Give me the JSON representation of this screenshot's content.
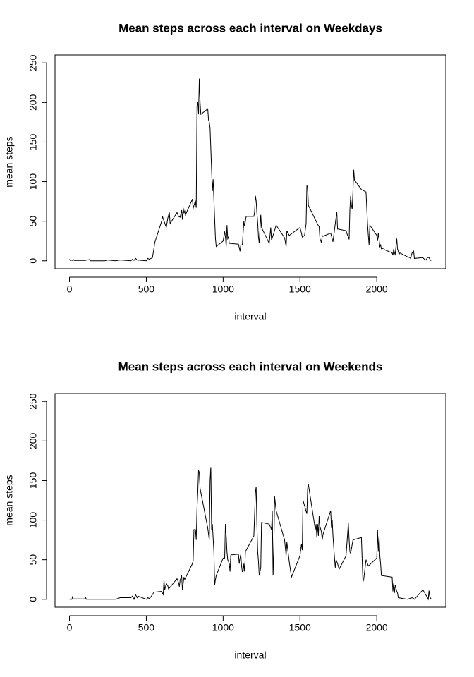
{
  "chart_data": [
    {
      "type": "line",
      "title": "Mean steps across each interval on Weekdays",
      "x_label": "interval",
      "y_label": "mean steps",
      "color": "#000000",
      "xlim": [
        -94.2,
        2449.2
      ],
      "ylim": [
        -10,
        260
      ],
      "xticks": [
        0,
        500,
        1000,
        1500,
        2000
      ],
      "yticks": [
        0,
        50,
        100,
        150,
        200,
        250
      ],
      "x": [
        0,
        5,
        10,
        15,
        20,
        25,
        30,
        100,
        130,
        135,
        200,
        230,
        245,
        300,
        330,
        400,
        410,
        420,
        430,
        440,
        500,
        510,
        520,
        530,
        540,
        550,
        555,
        600,
        605,
        630,
        640,
        650,
        655,
        700,
        710,
        720,
        730,
        735,
        740,
        745,
        750,
        755,
        800,
        805,
        810,
        815,
        820,
        825,
        830,
        835,
        840,
        845,
        850,
        855,
        900,
        905,
        910,
        915,
        930,
        935,
        945,
        950,
        955,
        1000,
        1010,
        1015,
        1020,
        1025,
        1030,
        1035,
        1040,
        1100,
        1110,
        1115,
        1125,
        1135,
        1140,
        1150,
        1200,
        1205,
        1210,
        1215,
        1220,
        1225,
        1230,
        1235,
        1245,
        1250,
        1300,
        1310,
        1315,
        1330,
        1345,
        1400,
        1410,
        1415,
        1430,
        1500,
        1510,
        1515,
        1530,
        1540,
        1545,
        1550,
        1555,
        1615,
        1625,
        1630,
        1640,
        1645,
        1650,
        1700,
        1715,
        1730,
        1740,
        1745,
        1750,
        1800,
        1810,
        1815,
        1820,
        1825,
        1830,
        1835,
        1840,
        1845,
        1850,
        1855,
        1900,
        1930,
        1940,
        1945,
        1950,
        1955,
        2000,
        2005,
        2010,
        2015,
        2020,
        2025,
        2030,
        2045,
        2050,
        2100,
        2105,
        2110,
        2115,
        2120,
        2130,
        2135,
        2140,
        2145,
        2150,
        2200,
        2215,
        2220,
        2230,
        2235,
        2240,
        2245,
        2300,
        2310,
        2320,
        2330,
        2340,
        2350,
        2355
      ],
      "values": [
        2,
        0.5,
        0.5,
        1,
        0.5,
        1.5,
        0.5,
        0.5,
        1.5,
        0,
        0,
        0,
        1,
        0,
        1,
        0,
        2,
        0.5,
        3,
        1,
        0,
        3,
        2,
        3,
        4,
        16,
        23,
        50,
        56,
        42,
        54,
        61,
        47,
        61,
        56,
        55,
        64,
        52,
        67,
        60,
        63,
        58,
        78,
        66,
        70,
        73,
        75,
        67,
        195,
        201,
        185,
        230,
        200,
        185,
        192,
        178,
        175,
        168,
        88,
        103,
        52,
        28,
        18,
        25,
        37,
        30,
        18,
        45,
        28,
        30,
        22,
        21,
        12,
        20,
        20,
        50,
        44,
        56,
        56,
        62,
        82,
        76,
        60,
        48,
        30,
        22,
        58,
        42,
        22,
        42,
        26,
        35,
        45,
        29,
        18,
        38,
        32,
        42,
        35,
        30,
        32,
        47,
        95,
        93,
        70,
        46,
        43,
        28,
        23,
        32,
        31,
        35,
        24,
        47,
        62,
        40,
        40,
        38,
        32,
        30,
        27,
        65,
        82,
        70,
        65,
        88,
        115,
        102,
        90,
        87,
        46,
        32,
        20,
        45,
        32,
        25,
        35,
        27,
        18,
        20,
        15,
        16,
        14,
        10,
        7,
        15,
        10,
        8,
        28,
        15,
        12,
        8,
        10,
        5,
        4,
        3,
        10,
        10,
        12,
        3,
        4,
        2,
        1,
        4,
        4,
        0.5,
        1
      ]
    },
    {
      "type": "line",
      "title": "Mean steps across each interval on Weekends",
      "x_label": "interval",
      "y_label": "mean steps",
      "color": "#000000",
      "xlim": [
        -94.2,
        2449.2
      ],
      "ylim": [
        -10,
        260
      ],
      "xticks": [
        0,
        500,
        1000,
        1500,
        2000
      ],
      "yticks": [
        0,
        50,
        100,
        150,
        200,
        250
      ],
      "x": [
        0,
        15,
        20,
        25,
        100,
        105,
        110,
        200,
        300,
        330,
        400,
        410,
        420,
        430,
        440,
        445,
        500,
        510,
        520,
        530,
        540,
        550,
        600,
        610,
        615,
        620,
        630,
        640,
        645,
        700,
        710,
        715,
        720,
        730,
        735,
        745,
        750,
        800,
        805,
        810,
        820,
        825,
        830,
        835,
        840,
        845,
        850,
        855,
        900,
        910,
        915,
        920,
        925,
        930,
        940,
        945,
        950,
        955,
        1000,
        1010,
        1015,
        1020,
        1025,
        1030,
        1040,
        1045,
        1050,
        1100,
        1105,
        1110,
        1115,
        1120,
        1125,
        1130,
        1135,
        1140,
        1145,
        1200,
        1210,
        1215,
        1220,
        1225,
        1230,
        1235,
        1245,
        1250,
        1300,
        1315,
        1320,
        1325,
        1330,
        1335,
        1345,
        1400,
        1410,
        1415,
        1430,
        1445,
        1500,
        1510,
        1515,
        1520,
        1545,
        1550,
        1555,
        1600,
        1605,
        1610,
        1615,
        1620,
        1625,
        1630,
        1640,
        1645,
        1650,
        1700,
        1705,
        1710,
        1715,
        1725,
        1730,
        1735,
        1745,
        1755,
        1800,
        1815,
        1820,
        1825,
        1830,
        1845,
        1900,
        1910,
        1915,
        1930,
        1945,
        2000,
        2005,
        2010,
        2015,
        2020,
        2025,
        2030,
        2100,
        2105,
        2110,
        2115,
        2120,
        2130,
        2135,
        2140,
        2200,
        2230,
        2240,
        2245,
        2300,
        2330,
        2335,
        2340,
        2345,
        2355
      ],
      "values": [
        0,
        0,
        3,
        0.5,
        0.5,
        2,
        0,
        0,
        0,
        2,
        2,
        4,
        0,
        6,
        2,
        4,
        0,
        2,
        1,
        3,
        6,
        9,
        10,
        6,
        24,
        12,
        20,
        17,
        13,
        26,
        21,
        16,
        24,
        30,
        12,
        28,
        25,
        45,
        49,
        88,
        88,
        75,
        115,
        135,
        163,
        160,
        140,
        135,
        90,
        75,
        150,
        167,
        88,
        95,
        60,
        18,
        25,
        30,
        52,
        52,
        95,
        80,
        60,
        50,
        45,
        35,
        56,
        57,
        45,
        52,
        57,
        42,
        35,
        35,
        45,
        35,
        60,
        80,
        135,
        142,
        93,
        60,
        48,
        30,
        40,
        97,
        95,
        88,
        112,
        30,
        62,
        130,
        112,
        75,
        55,
        72,
        48,
        28,
        55,
        70,
        62,
        125,
        108,
        140,
        145,
        88,
        95,
        78,
        95,
        80,
        105,
        92,
        85,
        75,
        82,
        112,
        90,
        100,
        80,
        52,
        40,
        50,
        45,
        38,
        55,
        96,
        75,
        60,
        58,
        75,
        78,
        22,
        25,
        50,
        42,
        52,
        88,
        60,
        80,
        55,
        45,
        30,
        28,
        10,
        20,
        8,
        18,
        10,
        8,
        2,
        0,
        2,
        1,
        0,
        12,
        2,
        0,
        11,
        3,
        0
      ]
    }
  ]
}
